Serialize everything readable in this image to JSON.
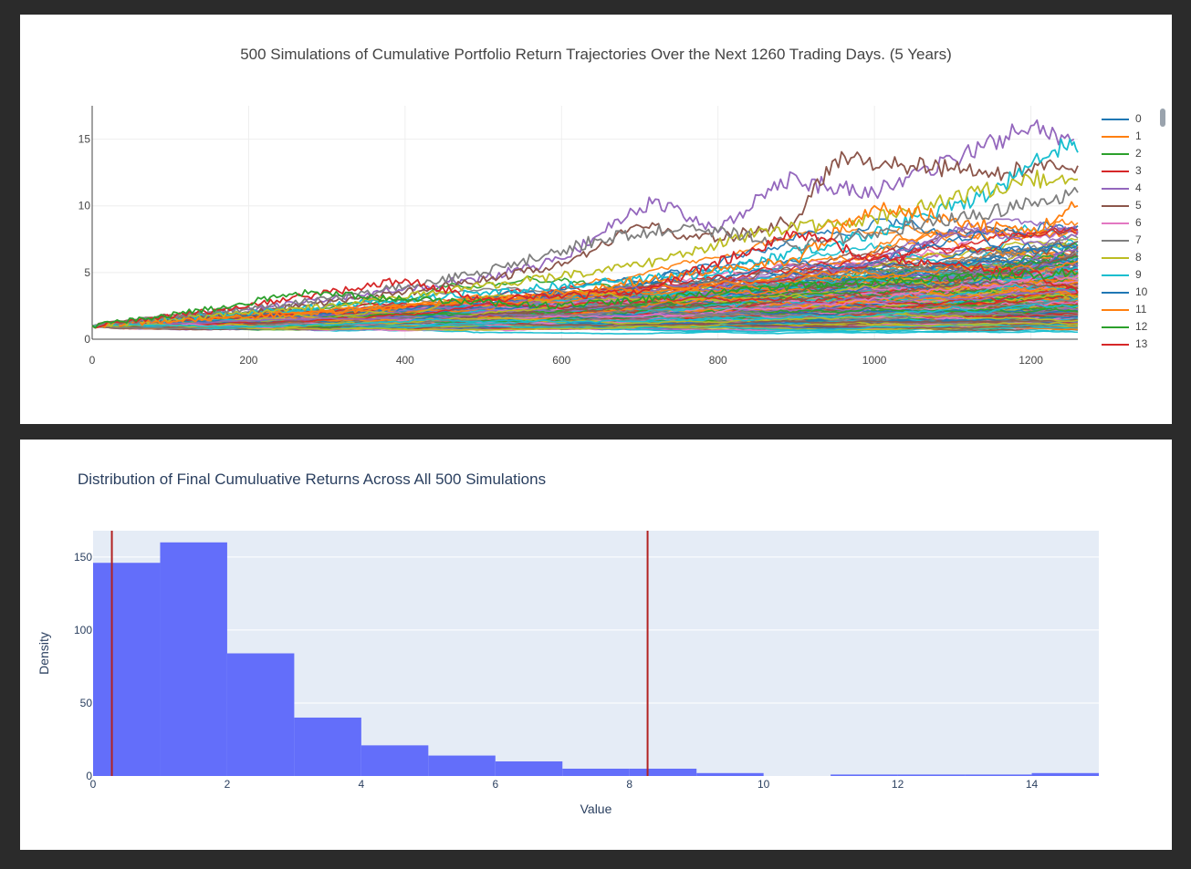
{
  "top_chart": {
    "title": "500 Simulations of Cumulative Portfolio Return Trajectories Over the Next 1260 Trading Days. (5 Years)"
  },
  "bottom_chart": {
    "title": "Distribution of Final Cumuluative Returns Across All 500 Simulations"
  },
  "chart_data": [
    {
      "type": "line",
      "title": "500 Simulations of Cumulative Portfolio Return Trajectories Over the Next 1260 Trading Days. (5 Years)",
      "xlabel": "",
      "ylabel": "",
      "xlim": [
        0,
        1260
      ],
      "ylim": [
        0,
        17.5
      ],
      "x_ticks": [
        0,
        200,
        400,
        600,
        800,
        1000,
        1200
      ],
      "y_ticks": [
        0,
        5,
        10,
        15
      ],
      "grid": true,
      "legend_position": "right",
      "num_series": 500,
      "visible_legend": [
        "0",
        "1",
        "2",
        "3",
        "4",
        "5",
        "6",
        "7",
        "8",
        "9",
        "10",
        "11",
        "12",
        "13"
      ],
      "colors": [
        "#1f77b4",
        "#ff7f0e",
        "#2ca02c",
        "#d62728",
        "#9467bd",
        "#8c564b",
        "#e377c2",
        "#7f7f7f",
        "#bcbd22",
        "#17becf",
        "#1f77b4",
        "#ff7f0e",
        "#2ca02c",
        "#d62728"
      ],
      "series_endpoints": [
        {
          "name": "4",
          "points": [
            [
              0,
              1
            ],
            [
              200,
              2.2
            ],
            [
              400,
              3.8
            ],
            [
              500,
              4.6
            ],
            [
              600,
              6
            ],
            [
              720,
              10.5
            ],
            [
              800,
              8
            ],
            [
              880,
              12
            ],
            [
              1000,
              11
            ],
            [
              1100,
              13.5
            ],
            [
              1200,
              16
            ],
            [
              1255,
              15
            ]
          ]
        },
        {
          "name": "5",
          "points": [
            [
              0,
              1
            ],
            [
              200,
              2
            ],
            [
              400,
              3.5
            ],
            [
              600,
              5.5
            ],
            [
              700,
              8.5
            ],
            [
              800,
              7.5
            ],
            [
              900,
              9
            ],
            [
              950,
              13.5
            ],
            [
              1050,
              13
            ],
            [
              1150,
              12.5
            ],
            [
              1260,
              13
            ]
          ]
        },
        {
          "name": "9",
          "points": [
            [
              0,
              1
            ],
            [
              300,
              2.5
            ],
            [
              600,
              4
            ],
            [
              800,
              5
            ],
            [
              1000,
              8
            ],
            [
              1150,
              11
            ],
            [
              1200,
              13
            ],
            [
              1250,
              15
            ],
            [
              1260,
              14
            ]
          ]
        },
        {
          "name": "8",
          "points": [
            [
              0,
              1
            ],
            [
              300,
              2.5
            ],
            [
              500,
              4
            ],
            [
              700,
              5.5
            ],
            [
              850,
              8
            ],
            [
              1000,
              9
            ],
            [
              1100,
              10.5
            ],
            [
              1200,
              12
            ],
            [
              1260,
              12
            ]
          ]
        },
        {
          "name": "1",
          "points": [
            [
              0,
              1
            ],
            [
              300,
              2
            ],
            [
              600,
              3.5
            ],
            [
              900,
              6
            ],
            [
              1000,
              10
            ],
            [
              1100,
              9
            ],
            [
              1200,
              8
            ],
            [
              1260,
              10
            ]
          ]
        },
        {
          "name": "7",
          "points": [
            [
              0,
              1
            ],
            [
              300,
              3
            ],
            [
              500,
              5
            ],
            [
              650,
              7.5
            ],
            [
              760,
              8.5
            ],
            [
              900,
              7
            ],
            [
              1000,
              8
            ],
            [
              1150,
              9.5
            ],
            [
              1260,
              11
            ]
          ]
        },
        {
          "name": "3",
          "points": [
            [
              0,
              1
            ],
            [
              200,
              2.5
            ],
            [
              400,
              4.5
            ],
            [
              500,
              3
            ],
            [
              700,
              3.5
            ],
            [
              900,
              8
            ],
            [
              1000,
              6
            ],
            [
              1200,
              5
            ],
            [
              1260,
              3.5
            ]
          ]
        },
        {
          "name": "2",
          "points": [
            [
              0,
              1
            ],
            [
              180,
              2.5
            ],
            [
              260,
              3.5
            ],
            [
              400,
              3
            ],
            [
              600,
              2.5
            ],
            [
              900,
              4
            ],
            [
              1260,
              5
            ]
          ]
        }
      ]
    },
    {
      "type": "bar",
      "title": "Distribution of Final Cumuluative Returns Across All 500 Simulations",
      "xlabel": "Value",
      "ylabel": "Density",
      "xlim": [
        0,
        15
      ],
      "ylim": [
        0,
        168
      ],
      "x_ticks": [
        0,
        2,
        4,
        6,
        8,
        10,
        12,
        14
      ],
      "y_ticks": [
        0,
        50,
        100,
        150
      ],
      "bins": [
        [
          0,
          1
        ],
        [
          1,
          2
        ],
        [
          2,
          3
        ],
        [
          3,
          4
        ],
        [
          4,
          5
        ],
        [
          5,
          6
        ],
        [
          6,
          7
        ],
        [
          7,
          8
        ],
        [
          8,
          9
        ],
        [
          9,
          10
        ],
        [
          10,
          11
        ],
        [
          11,
          12
        ],
        [
          12,
          13
        ],
        [
          13,
          14
        ],
        [
          14,
          15
        ]
      ],
      "values": [
        146,
        160,
        84,
        40,
        21,
        14,
        10,
        5,
        5,
        2,
        0,
        1,
        1,
        1,
        2
      ],
      "bar_color": "#636efa",
      "vlines": [
        0.28,
        8.27
      ],
      "vline_color": "#b22222",
      "background": "#e5ecf6"
    }
  ]
}
